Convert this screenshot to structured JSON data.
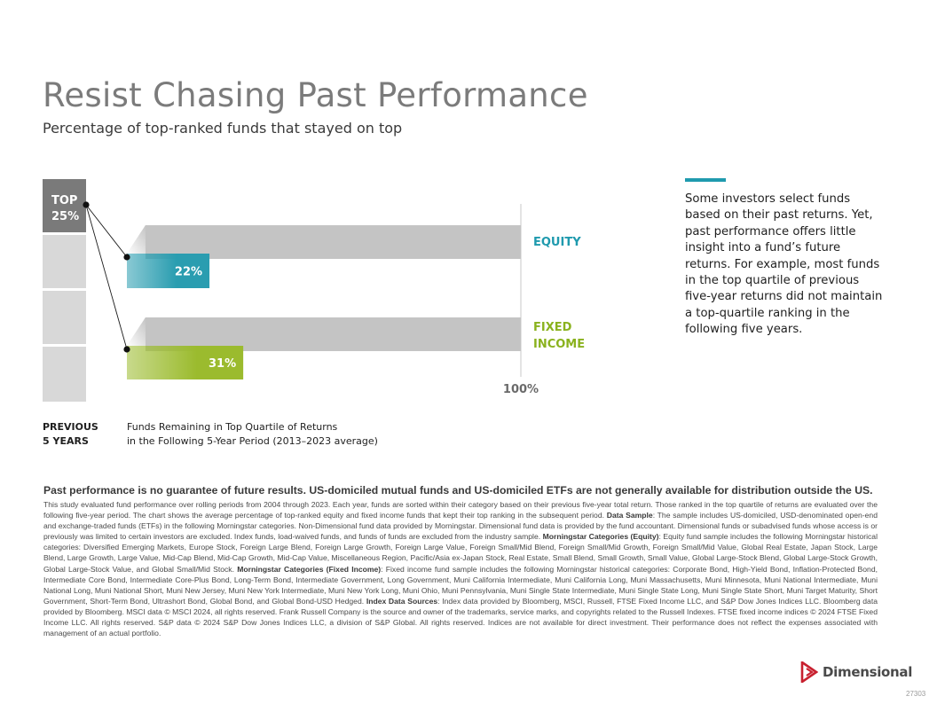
{
  "title": "Resist Chasing Past Performance",
  "subtitle": "Percentage of top-ranked funds that stayed on top",
  "colors": {
    "equity_bar": "#2a9db0",
    "fixed_bar": "#9bbb2e",
    "equity_label": "#1f9aae",
    "fixed_label": "#8ab21e",
    "gray_bar": "#c4c4c4",
    "top_box": "#7a7a7a",
    "box_fill": "#d8d8d8",
    "accent": "#1f9aae"
  },
  "chart_data": {
    "type": "bar",
    "orientation": "horizontal",
    "categories": [
      "EQUITY",
      "FIXED INCOME"
    ],
    "series": [
      {
        "values": [
          22,
          31
        ]
      }
    ],
    "reference_value": 100,
    "reference_label": "100%",
    "value_labels": [
      "22%",
      "31%"
    ],
    "top_box_label_lines": [
      "TOP",
      "25%"
    ],
    "x_caption_left_lines": [
      "PREVIOUS",
      "5 YEARS"
    ],
    "x_caption_right_lines": [
      "Funds Remaining in Top Quartile of Returns",
      "in the Following 5-Year Period (2013–2023 average)"
    ],
    "xlim": [
      0,
      100
    ]
  },
  "sidebar_text": "Some investors select funds based on their past returns. Yet, past performance offers little insight into a fund’s future returns. For example, most funds in the top quartile of previous five-year returns did not maintain a top-quartile ranking in the following five years.",
  "footnote": {
    "lead": "Past performance is no guarantee of future results. US-domiciled mutual funds and US-domiciled ETFs are not generally available for distribution outside the US.",
    "p1": "This study evaluated fund performance over rolling periods from 2004 through 2023. Each year, funds are sorted within their category based on their previous five-year total return. Those ranked in the top quartile of returns are evaluated over the following five-year period. The chart shows the average percentage of top-ranked equity and fixed income funds that kept their top ranking in the subsequent period. ",
    "h_data_sample": "Data Sample",
    "p2": ": The sample includes US-domiciled, USD-denominated open-end and exchange-traded funds (ETFs) in the following Morningstar categories. Non-Dimensional fund data provided by Morningstar. Dimensional fund data is provided by the fund accountant. Dimensional funds or subadvised funds whose access is or previously was limited to certain investors are excluded. Index funds, load-waived funds, and funds of funds are excluded from the industry sample. ",
    "h_equity": "Morningstar Categories (Equity)",
    "p3": ": Equity fund sample includes the following Morningstar historical categories: Diversified Emerging Markets, Europe Stock, Foreign Large Blend, Foreign Large Growth, Foreign Large Value, Foreign Small/Mid Blend, Foreign Small/Mid Growth, Foreign Small/Mid Value, Global Real Estate, Japan Stock, Large Blend, Large Growth, Large Value, Mid-Cap Blend, Mid-Cap Growth, Mid-Cap Value, Miscellaneous Region, Pacific/Asia ex-Japan Stock, Real Estate, Small Blend, Small Growth, Small Value, Global Large-Stock Blend, Global Large-Stock Growth, Global Large-Stock Value, and Global Small/Mid Stock. ",
    "h_fixed": "Morningstar Categories (Fixed Income)",
    "p4": ": Fixed income fund sample includes the following Morningstar historical categories: Corporate Bond, High-Yield Bond, Inflation-Protected Bond, Intermediate Core Bond, Intermediate Core-Plus Bond, Long-Term Bond, Intermediate Government, Long Government, Muni California Intermediate, Muni California Long, Muni Massachusetts, Muni Minnesota, Muni National Intermediate, Muni National Long, Muni National Short, Muni New Jersey, Muni New York Intermediate, Muni New York Long, Muni Ohio, Muni Pennsylvania, Muni Single State Intermediate, Muni Single State Long, Muni Single State Short, Muni Target Maturity, Short Government, Short-Term Bond, Ultrashort Bond, Global Bond, and Global Bond-USD Hedged. ",
    "h_index": "Index Data Sources",
    "p5": ": Index data provided by Bloomberg, MSCI, Russell, FTSE Fixed Income LLC, and S&P Dow Jones Indices LLC. Bloomberg data provided by Bloomberg. MSCI data © MSCI 2024, all rights reserved. Frank Russell Company is the source and owner of the trademarks, service marks, and copyrights related to the Russell Indexes. FTSE fixed income indices © 2024 FTSE Fixed Income LLC. All rights reserved. S&P data © 2024 S&P Dow Jones Indices LLC, a division of S&P Global. All rights reserved. Indices are not available for direct investment. Their performance does not reflect the expenses associated with management of an actual portfolio."
  },
  "logo": {
    "text": "Dimensional",
    "color": "#c8202f"
  },
  "page_number": "27303"
}
